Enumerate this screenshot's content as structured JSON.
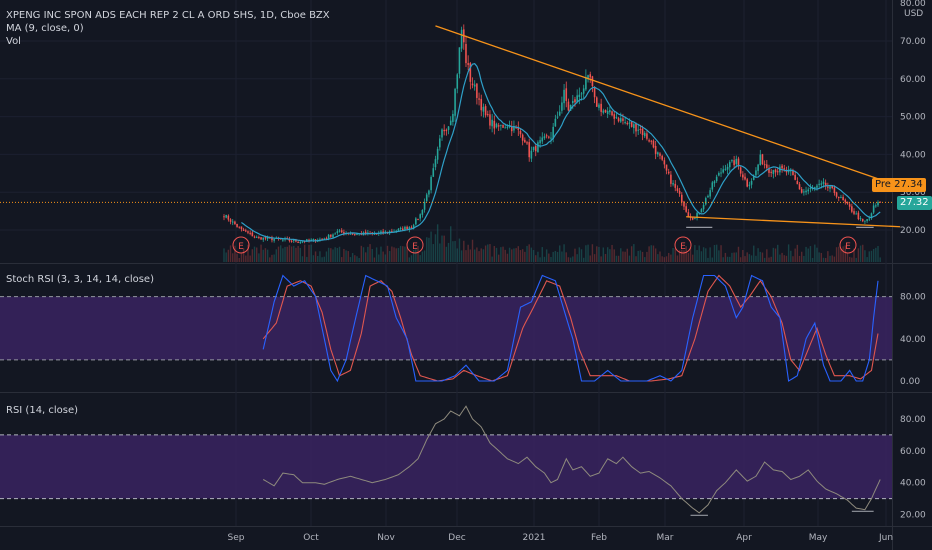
{
  "header": {
    "title": "XPENG INC SPON ADS EACH REP 2 CL A ORD SHS, 1D, Cboe BZX",
    "ma_label": "MA (9, close, 0)",
    "vol_label": "Vol",
    "currency": "USD"
  },
  "price_tags": {
    "pre_label": "Pre",
    "pre_value": "27.34",
    "last_value": "27.32"
  },
  "colors": {
    "background": "#131722",
    "up": "#26a69a",
    "down": "#ef5350",
    "ma_line": "#2ea0c8",
    "trendline": "#f7931a",
    "stoch_k": "#2962ff",
    "stoch_d": "#e0574f",
    "rsi_line": "#8e8a7d",
    "oscillator_band": "#3a2360"
  },
  "chart_data": [
    {
      "type": "candlestick",
      "title": "XPENG INC SPON ADS EACH REP 2 CL A ORD SHS, 1D, Cboe BZX",
      "ylim": [
        15,
        80
      ],
      "y_ticks": [
        "80.00",
        "70.00",
        "60.00",
        "50.00",
        "40.00",
        "30.00",
        "20.00"
      ],
      "x_ticks": [
        "Sep",
        "Oct",
        "Nov",
        "Dec",
        "2021",
        "Feb",
        "Mar",
        "Apr",
        "May",
        "Jun"
      ],
      "close_anchors": [
        [
          0,
          24
        ],
        [
          8,
          20
        ],
        [
          15,
          18
        ],
        [
          25,
          17.5
        ],
        [
          35,
          17
        ],
        [
          45,
          17.5
        ],
        [
          52,
          19.5
        ],
        [
          60,
          19
        ],
        [
          70,
          19
        ],
        [
          80,
          20
        ],
        [
          86,
          21
        ],
        [
          90,
          24
        ],
        [
          94,
          31
        ],
        [
          97,
          38
        ],
        [
          100,
          46
        ],
        [
          103,
          48
        ],
        [
          105,
          52
        ],
        [
          107,
          62
        ],
        [
          109,
          73
        ],
        [
          111,
          65
        ],
        [
          113,
          60
        ],
        [
          116,
          56
        ],
        [
          120,
          50
        ],
        [
          125,
          47
        ],
        [
          130,
          48
        ],
        [
          135,
          46
        ],
        [
          138,
          44
        ],
        [
          140,
          40
        ],
        [
          145,
          43
        ],
        [
          150,
          45
        ],
        [
          154,
          52
        ],
        [
          156,
          56
        ],
        [
          158,
          52
        ],
        [
          162,
          55
        ],
        [
          166,
          59
        ],
        [
          168,
          60
        ],
        [
          170,
          54
        ],
        [
          175,
          51
        ],
        [
          180,
          50
        ],
        [
          185,
          48
        ],
        [
          190,
          47
        ],
        [
          195,
          44
        ],
        [
          200,
          39
        ],
        [
          205,
          33
        ],
        [
          210,
          28
        ],
        [
          213,
          24
        ],
        [
          216,
          23
        ],
        [
          220,
          27
        ],
        [
          225,
          33
        ],
        [
          230,
          37
        ],
        [
          235,
          38
        ],
        [
          240,
          32
        ],
        [
          243,
          34
        ],
        [
          246,
          39
        ],
        [
          250,
          36
        ],
        [
          255,
          36
        ],
        [
          260,
          35
        ],
        [
          265,
          30
        ],
        [
          270,
          31
        ],
        [
          275,
          32
        ],
        [
          280,
          30
        ],
        [
          285,
          27
        ],
        [
          290,
          24
        ],
        [
          293,
          22
        ],
        [
          296,
          23
        ],
        [
          298,
          26
        ],
        [
          301,
          27.32
        ]
      ],
      "ma_label": "MA (9, close, 0)",
      "trendline_upper": [
        [
          97,
          74
        ],
        [
          301,
          31
        ]
      ],
      "trendline_lower": [
        [
          212,
          23.5
        ],
        [
          301,
          21
        ]
      ],
      "last_price": 27.32,
      "earnings_markers": 4,
      "volume_label": "Vol"
    },
    {
      "type": "line",
      "title": "Stoch RSI (3, 3, 14, 14, close)",
      "ylim": [
        -5,
        110
      ],
      "y_ticks": [
        "80.00",
        "40.00",
        "0.00"
      ],
      "bands": [
        20,
        80
      ],
      "k_anchors": [
        [
          18,
          30
        ],
        [
          23,
          75
        ],
        [
          27,
          100
        ],
        [
          32,
          90
        ],
        [
          37,
          95
        ],
        [
          42,
          80
        ],
        [
          46,
          40
        ],
        [
          49,
          10
        ],
        [
          52,
          0
        ],
        [
          56,
          20
        ],
        [
          61,
          65
        ],
        [
          65,
          100
        ],
        [
          70,
          95
        ],
        [
          75,
          90
        ],
        [
          79,
          60
        ],
        [
          84,
          40
        ],
        [
          88,
          0
        ],
        [
          94,
          0
        ],
        [
          100,
          0
        ],
        [
          106,
          5
        ],
        [
          111,
          15
        ],
        [
          117,
          0
        ],
        [
          124,
          0
        ],
        [
          130,
          10
        ],
        [
          136,
          70
        ],
        [
          141,
          75
        ],
        [
          146,
          100
        ],
        [
          152,
          95
        ],
        [
          157,
          60
        ],
        [
          160,
          40
        ],
        [
          164,
          0
        ],
        [
          170,
          0
        ],
        [
          176,
          10
        ],
        [
          182,
          0
        ],
        [
          188,
          0
        ],
        [
          194,
          0
        ],
        [
          200,
          5
        ],
        [
          205,
          0
        ],
        [
          210,
          10
        ],
        [
          215,
          60
        ],
        [
          220,
          100
        ],
        [
          225,
          100
        ],
        [
          230,
          90
        ],
        [
          235,
          60
        ],
        [
          238,
          70
        ],
        [
          242,
          100
        ],
        [
          247,
          95
        ],
        [
          251,
          70
        ],
        [
          255,
          60
        ],
        [
          259,
          0
        ],
        [
          263,
          5
        ],
        [
          267,
          40
        ],
        [
          271,
          55
        ],
        [
          275,
          15
        ],
        [
          278,
          0
        ],
        [
          283,
          0
        ],
        [
          287,
          10
        ],
        [
          290,
          0
        ],
        [
          293,
          0
        ],
        [
          296,
          20
        ],
        [
          298,
          60
        ],
        [
          300,
          95
        ]
      ],
      "d_anchors": [
        [
          18,
          40
        ],
        [
          24,
          55
        ],
        [
          29,
          90
        ],
        [
          35,
          95
        ],
        [
          40,
          90
        ],
        [
          45,
          65
        ],
        [
          49,
          30
        ],
        [
          53,
          5
        ],
        [
          58,
          10
        ],
        [
          63,
          45
        ],
        [
          67,
          90
        ],
        [
          72,
          95
        ],
        [
          77,
          85
        ],
        [
          81,
          60
        ],
        [
          86,
          25
        ],
        [
          90,
          5
        ],
        [
          98,
          0
        ],
        [
          105,
          2
        ],
        [
          110,
          10
        ],
        [
          116,
          5
        ],
        [
          123,
          0
        ],
        [
          130,
          5
        ],
        [
          137,
          50
        ],
        [
          142,
          70
        ],
        [
          148,
          95
        ],
        [
          154,
          90
        ],
        [
          159,
          60
        ],
        [
          163,
          30
        ],
        [
          168,
          5
        ],
        [
          174,
          5
        ],
        [
          180,
          5
        ],
        [
          186,
          0
        ],
        [
          196,
          0
        ],
        [
          204,
          2
        ],
        [
          210,
          5
        ],
        [
          216,
          40
        ],
        [
          222,
          85
        ],
        [
          227,
          100
        ],
        [
          232,
          90
        ],
        [
          237,
          70
        ],
        [
          241,
          80
        ],
        [
          246,
          95
        ],
        [
          251,
          80
        ],
        [
          256,
          55
        ],
        [
          260,
          20
        ],
        [
          264,
          10
        ],
        [
          268,
          30
        ],
        [
          272,
          50
        ],
        [
          276,
          25
        ],
        [
          280,
          5
        ],
        [
          287,
          5
        ],
        [
          292,
          2
        ],
        [
          297,
          10
        ],
        [
          300,
          45
        ]
      ]
    },
    {
      "type": "line",
      "title": "RSI (14, close)",
      "ylim": [
        15,
        95
      ],
      "y_ticks": [
        "80.00",
        "60.00",
        "40.00",
        "20.00"
      ],
      "bands": [
        30,
        70
      ],
      "anchors": [
        [
          18,
          42
        ],
        [
          23,
          38
        ],
        [
          27,
          46
        ],
        [
          32,
          45
        ],
        [
          36,
          40
        ],
        [
          42,
          40
        ],
        [
          46,
          39
        ],
        [
          52,
          42
        ],
        [
          58,
          44
        ],
        [
          63,
          42
        ],
        [
          68,
          40
        ],
        [
          74,
          42
        ],
        [
          80,
          45
        ],
        [
          85,
          50
        ],
        [
          89,
          55
        ],
        [
          93,
          67
        ],
        [
          97,
          77
        ],
        [
          101,
          80
        ],
        [
          104,
          85
        ],
        [
          108,
          82
        ],
        [
          111,
          88
        ],
        [
          114,
          80
        ],
        [
          118,
          75
        ],
        [
          122,
          65
        ],
        [
          126,
          60
        ],
        [
          130,
          55
        ],
        [
          135,
          52
        ],
        [
          139,
          56
        ],
        [
          143,
          50
        ],
        [
          147,
          46
        ],
        [
          150,
          40
        ],
        [
          153,
          42
        ],
        [
          157,
          55
        ],
        [
          160,
          48
        ],
        [
          164,
          50
        ],
        [
          168,
          44
        ],
        [
          172,
          46
        ],
        [
          176,
          55
        ],
        [
          180,
          52
        ],
        [
          183,
          56
        ],
        [
          187,
          50
        ],
        [
          191,
          46
        ],
        [
          195,
          47
        ],
        [
          200,
          43
        ],
        [
          205,
          38
        ],
        [
          210,
          30
        ],
        [
          215,
          24
        ],
        [
          218,
          21
        ],
        [
          222,
          26
        ],
        [
          226,
          35
        ],
        [
          230,
          40
        ],
        [
          235,
          48
        ],
        [
          240,
          41
        ],
        [
          244,
          44
        ],
        [
          248,
          53
        ],
        [
          252,
          48
        ],
        [
          256,
          47
        ],
        [
          260,
          42
        ],
        [
          264,
          44
        ],
        [
          268,
          48
        ],
        [
          272,
          41
        ],
        [
          276,
          36
        ],
        [
          281,
          33
        ],
        [
          286,
          29
        ],
        [
          290,
          24
        ],
        [
          294,
          23
        ],
        [
          297,
          30
        ],
        [
          299,
          36
        ],
        [
          301,
          42
        ]
      ],
      "divergence_marks": 2
    }
  ],
  "panels": {
    "stoch_title": "Stoch RSI (3, 3, 14, 14, close)",
    "rsi_title": "RSI (14, close)"
  }
}
